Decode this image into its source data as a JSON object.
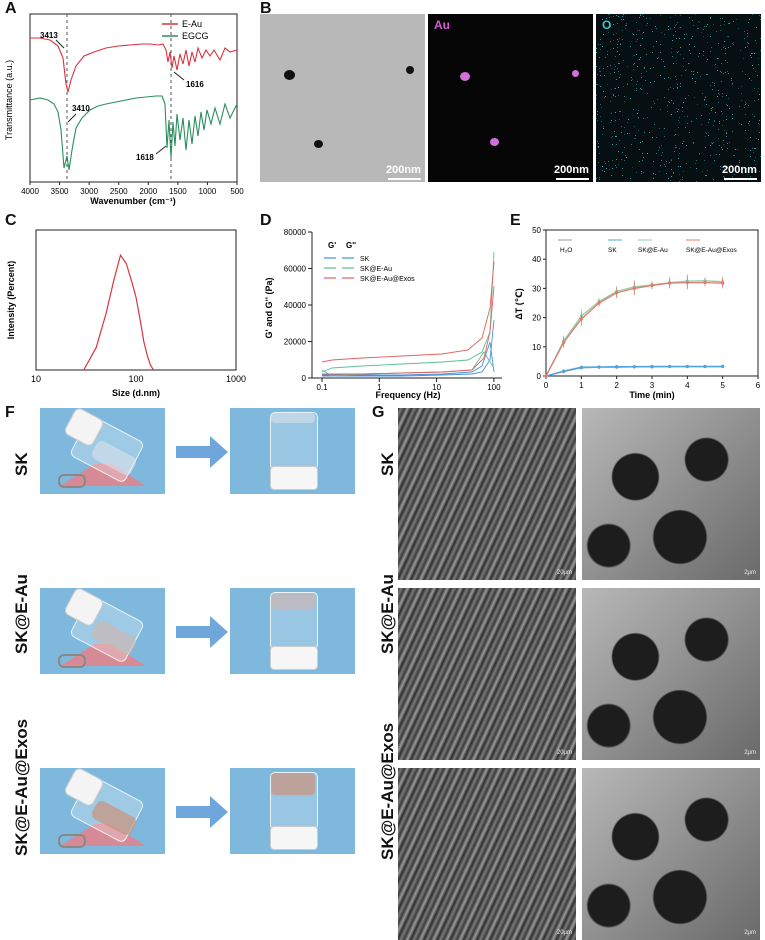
{
  "panels": {
    "A": {
      "letter": "A",
      "chart_data": {
        "type": "line",
        "ylabel": "Transmittance (a.u.)",
        "xlabel": "Wavenumber (cm⁻¹)",
        "xlim": [
          4000,
          500
        ],
        "xticks": [
          "4000",
          "3500",
          "3000",
          "2500",
          "2000",
          "1500",
          "1000",
          "500"
        ],
        "series": [
          {
            "name": "E-Au",
            "color": "#d9333f"
          },
          {
            "name": "EGCG",
            "color": "#2a8f5e"
          }
        ],
        "annotations": [
          "3413",
          "1616",
          "3410",
          "1618"
        ]
      }
    },
    "B": {
      "letter": "B",
      "labels": [
        "Au",
        "O"
      ],
      "scalebars": [
        "200nm",
        "200nm",
        "200nm"
      ]
    },
    "C": {
      "letter": "C",
      "chart_data": {
        "type": "line",
        "ylabel": "Intensity (Percent)",
        "xlabel": "Size (d.nm)",
        "xticks": [
          "10",
          "100",
          "1000"
        ],
        "x": [
          30,
          40,
          50,
          60,
          70,
          80,
          90,
          100,
          110,
          120,
          130,
          140,
          150
        ],
        "values": [
          0,
          4,
          10,
          16,
          20.5,
          19,
          16,
          13,
          9,
          5,
          2.5,
          0.8,
          0
        ],
        "color": "#d9333f"
      }
    },
    "D": {
      "letter": "D",
      "chart_data": {
        "type": "line",
        "ylabel": "G' and G'' (Pa)",
        "xlabel": "Frequency (Hz)",
        "ylim": [
          0,
          80000
        ],
        "yticks": [
          "0",
          "20000",
          "40000",
          "60000",
          "80000"
        ],
        "xticks": [
          "0.1",
          "1",
          "10",
          "100"
        ],
        "legend_header": [
          "G'",
          "G''"
        ],
        "series": [
          {
            "name": "SK",
            "color": "#4a90d9"
          },
          {
            "name": "SK@E-Au",
            "color": "#5fbf8f"
          },
          {
            "name": "SK@E-Au@Exos",
            "color": "#e3625f"
          }
        ]
      }
    },
    "E": {
      "letter": "E",
      "chart_data": {
        "type": "line",
        "ylabel": "ΔT (℃)",
        "xlabel": "Time (min)",
        "ylim": [
          0,
          50
        ],
        "xlim": [
          0,
          6
        ],
        "yticks": [
          "0",
          "10",
          "20",
          "30",
          "40",
          "50"
        ],
        "xticks": [
          "0",
          "1",
          "2",
          "3",
          "4",
          "5",
          "6"
        ],
        "x": [
          0,
          0.5,
          1,
          1.5,
          2,
          2.5,
          3,
          3.5,
          4,
          4.5,
          5
        ],
        "series": [
          {
            "name": "H₂O",
            "color": "#9a9aa0",
            "values": [
              0,
              1.5,
              2.8,
              3,
              3,
              3.1,
              3.1,
              3.2,
              3.2,
              3.2,
              3.2
            ]
          },
          {
            "name": "SK",
            "color": "#4ea6e0",
            "values": [
              0,
              1.7,
              3,
              3.1,
              3.2,
              3.2,
              3.3,
              3.3,
              3.3,
              3.3,
              3.3
            ]
          },
          {
            "name": "SK@E-Au",
            "color": "#8fcfa8",
            "values": [
              0,
              12,
              20.5,
              25.5,
              29,
              30.5,
              31.2,
              32,
              32.5,
              32.6,
              32.3
            ]
          },
          {
            "name": "SK@E-Au@Exos",
            "color": "#e07a6a",
            "values": [
              0,
              11.5,
              19.5,
              25,
              28.5,
              30,
              31,
              31.8,
              32,
              32,
              31.8
            ]
          }
        ]
      }
    },
    "F": {
      "letter": "F",
      "rows": [
        "SK",
        "SK@E-Au",
        "SK@E-Au@Exos"
      ]
    },
    "G": {
      "letter": "G",
      "rows": [
        "SK",
        "SK@E-Au",
        "SK@E-Au@Exos"
      ],
      "scalebars": [
        "20μm",
        "2μm",
        "20μm",
        "2μm",
        "20μm",
        "2μm"
      ]
    }
  }
}
